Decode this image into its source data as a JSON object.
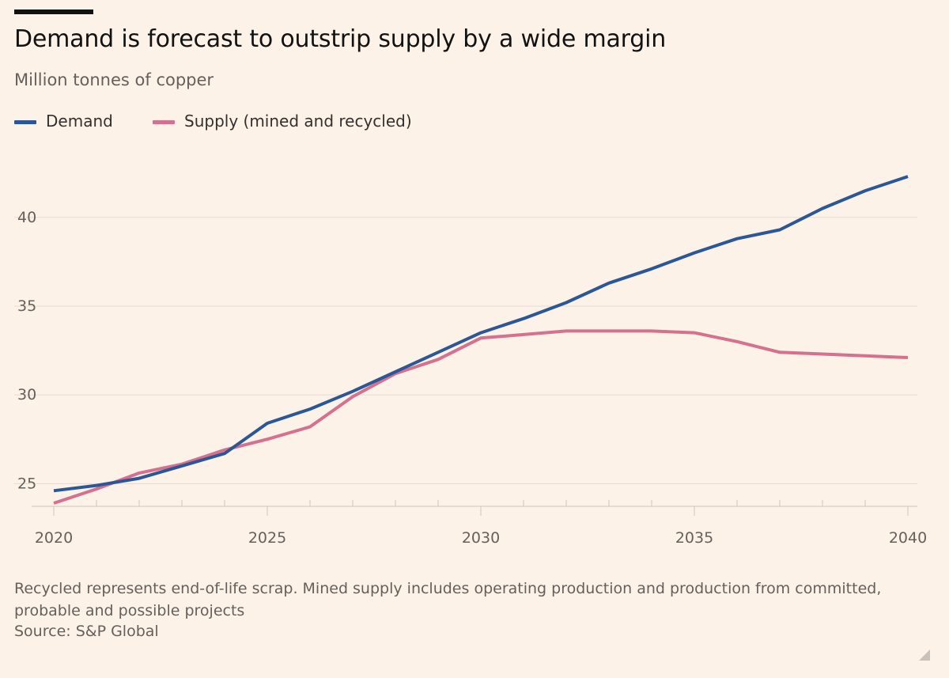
{
  "title": "Demand is forecast to outstrip supply by a wide margin",
  "subtitle": "Million tonnes of copper",
  "legend": {
    "demand_label": "Demand",
    "supply_label": "Supply (mined and recycled)"
  },
  "note": "Recycled represents end-of-life scrap. Mined supply includes operating production and production from committed, probable and possible projects",
  "source": "Source: S&P Global",
  "colors": {
    "background": "#fcf2e8",
    "demand": "#2b5797",
    "supply": "#d6708f",
    "grid": "#e6dcd2",
    "axis": "#cfc6bd"
  },
  "chart_data": {
    "type": "line",
    "title": "Demand is forecast to outstrip supply by a wide margin",
    "ylabel": "Million tonnes of copper",
    "xlabel": "",
    "x": [
      2020,
      2021,
      2022,
      2023,
      2024,
      2025,
      2026,
      2027,
      2028,
      2029,
      2030,
      2031,
      2032,
      2033,
      2034,
      2035,
      2036,
      2037,
      2038,
      2039,
      2040
    ],
    "x_ticks": [
      2020,
      2025,
      2030,
      2035,
      2040
    ],
    "y_ticks": [
      25,
      30,
      35,
      40
    ],
    "xlim": [
      2020,
      2040
    ],
    "ylim": [
      23.5,
      44
    ],
    "grid": true,
    "legend_position": "top-left",
    "series": [
      {
        "name": "Demand",
        "values": [
          24.6,
          24.9,
          25.3,
          26.0,
          26.7,
          28.4,
          29.2,
          30.2,
          31.3,
          32.4,
          33.5,
          34.3,
          35.2,
          36.3,
          37.1,
          38.0,
          38.8,
          39.3,
          40.5,
          41.5,
          42.3
        ]
      },
      {
        "name": "Supply (mined and recycled)",
        "values": [
          23.9,
          24.7,
          25.6,
          26.1,
          26.9,
          27.5,
          28.2,
          29.9,
          31.2,
          32.0,
          33.2,
          33.4,
          33.6,
          33.6,
          33.6,
          33.5,
          33.0,
          32.4,
          32.3,
          32.2,
          32.1
        ]
      }
    ]
  }
}
